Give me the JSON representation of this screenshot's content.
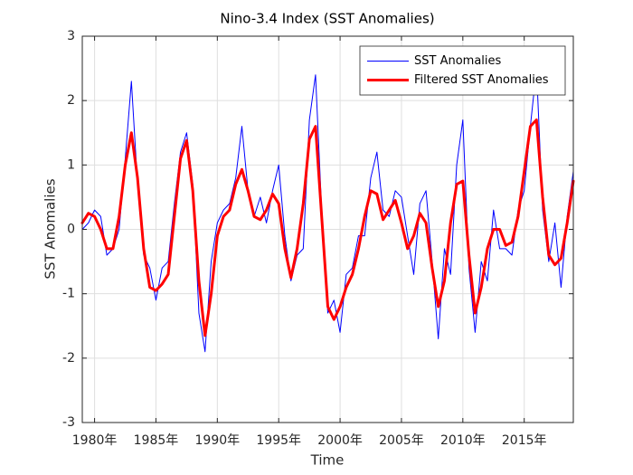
{
  "chart_data": {
    "type": "line",
    "title": "Nino-3.4 Index (SST Anomalies)",
    "xlabel": "Time",
    "ylabel": "SST Anomalies",
    "x": [
      1979,
      1979.5,
      1980,
      1980.5,
      1981,
      1981.5,
      1982,
      1982.5,
      1983,
      1983.5,
      1984,
      1984.5,
      1985,
      1985.5,
      1986,
      1986.5,
      1987,
      1987.5,
      1988,
      1988.5,
      1989,
      1989.5,
      1990,
      1990.5,
      1991,
      1991.5,
      1992,
      1992.5,
      1993,
      1993.5,
      1994,
      1994.5,
      1995,
      1995.5,
      1996,
      1996.5,
      1997,
      1997.5,
      1998,
      1998.5,
      1999,
      1999.5,
      2000,
      2000.5,
      2001,
      2001.5,
      2002,
      2002.5,
      2003,
      2003.5,
      2004,
      2004.5,
      2005,
      2005.5,
      2006,
      2006.5,
      2007,
      2007.5,
      2008,
      2008.5,
      2009,
      2009.5,
      2010,
      2010.5,
      2011,
      2011.5,
      2012,
      2012.5,
      2013,
      2013.5,
      2014,
      2014.5,
      2015,
      2015.5,
      2016,
      2016.5,
      2017,
      2017.5,
      2018,
      2018.5,
      2019
    ],
    "series": [
      {
        "name": "SST Anomalies",
        "color": "#0000ff",
        "width": 1,
        "values": [
          0.0,
          0.1,
          0.3,
          0.2,
          -0.4,
          -0.3,
          0.0,
          1.1,
          2.3,
          0.7,
          -0.4,
          -0.6,
          -1.1,
          -0.6,
          -0.5,
          0.4,
          1.2,
          1.5,
          0.7,
          -1.3,
          -1.9,
          -0.5,
          0.1,
          0.3,
          0.4,
          0.8,
          1.6,
          0.6,
          0.2,
          0.5,
          0.1,
          0.6,
          1.0,
          -0.1,
          -0.8,
          -0.4,
          -0.3,
          1.7,
          2.4,
          0.3,
          -1.3,
          -1.1,
          -1.6,
          -0.7,
          -0.6,
          -0.1,
          -0.1,
          0.8,
          1.2,
          0.3,
          0.2,
          0.6,
          0.5,
          -0.1,
          -0.7,
          0.4,
          0.6,
          -0.5,
          -1.7,
          -0.3,
          -0.7,
          1.0,
          1.7,
          -0.6,
          -1.6,
          -0.5,
          -0.8,
          0.3,
          -0.3,
          -0.3,
          -0.4,
          0.3,
          0.6,
          1.6,
          2.5,
          0.3,
          -0.5,
          0.1,
          -0.9,
          0.2,
          0.9
        ]
      },
      {
        "name": "Filtered SST Anomalies",
        "color": "#ff0000",
        "width": 3,
        "values": [
          0.1,
          0.25,
          0.2,
          0.0,
          -0.3,
          -0.3,
          0.2,
          1.0,
          1.5,
          0.8,
          -0.3,
          -0.9,
          -0.95,
          -0.85,
          -0.7,
          0.2,
          1.1,
          1.38,
          0.6,
          -0.8,
          -1.65,
          -1.0,
          -0.1,
          0.2,
          0.3,
          0.7,
          0.93,
          0.6,
          0.2,
          0.15,
          0.3,
          0.55,
          0.4,
          -0.3,
          -0.75,
          -0.3,
          0.4,
          1.4,
          1.6,
          0.2,
          -1.2,
          -1.4,
          -1.2,
          -0.9,
          -0.7,
          -0.3,
          0.2,
          0.6,
          0.55,
          0.15,
          0.3,
          0.45,
          0.1,
          -0.3,
          -0.1,
          0.25,
          0.1,
          -0.6,
          -1.2,
          -0.8,
          0.1,
          0.7,
          0.75,
          -0.4,
          -1.3,
          -0.9,
          -0.3,
          0.0,
          0.0,
          -0.25,
          -0.2,
          0.2,
          0.9,
          1.6,
          1.7,
          0.5,
          -0.4,
          -0.55,
          -0.45,
          0.1,
          0.75
        ]
      }
    ],
    "xlim": [
      1979,
      2019
    ],
    "xticks": [
      {
        "value": 1980,
        "label": "1980年"
      },
      {
        "value": 1985,
        "label": "1985年"
      },
      {
        "value": 1990,
        "label": "1990年"
      },
      {
        "value": 1995,
        "label": "1995年"
      },
      {
        "value": 2000,
        "label": "2000年"
      },
      {
        "value": 2005,
        "label": "2005年"
      },
      {
        "value": 2010,
        "label": "2010年"
      },
      {
        "value": 2015,
        "label": "2015年"
      }
    ],
    "ylim": [
      -3,
      3
    ],
    "yticks": [
      -3,
      -2,
      -1,
      0,
      1,
      2,
      3
    ],
    "grid": true,
    "legend": "northeast"
  }
}
